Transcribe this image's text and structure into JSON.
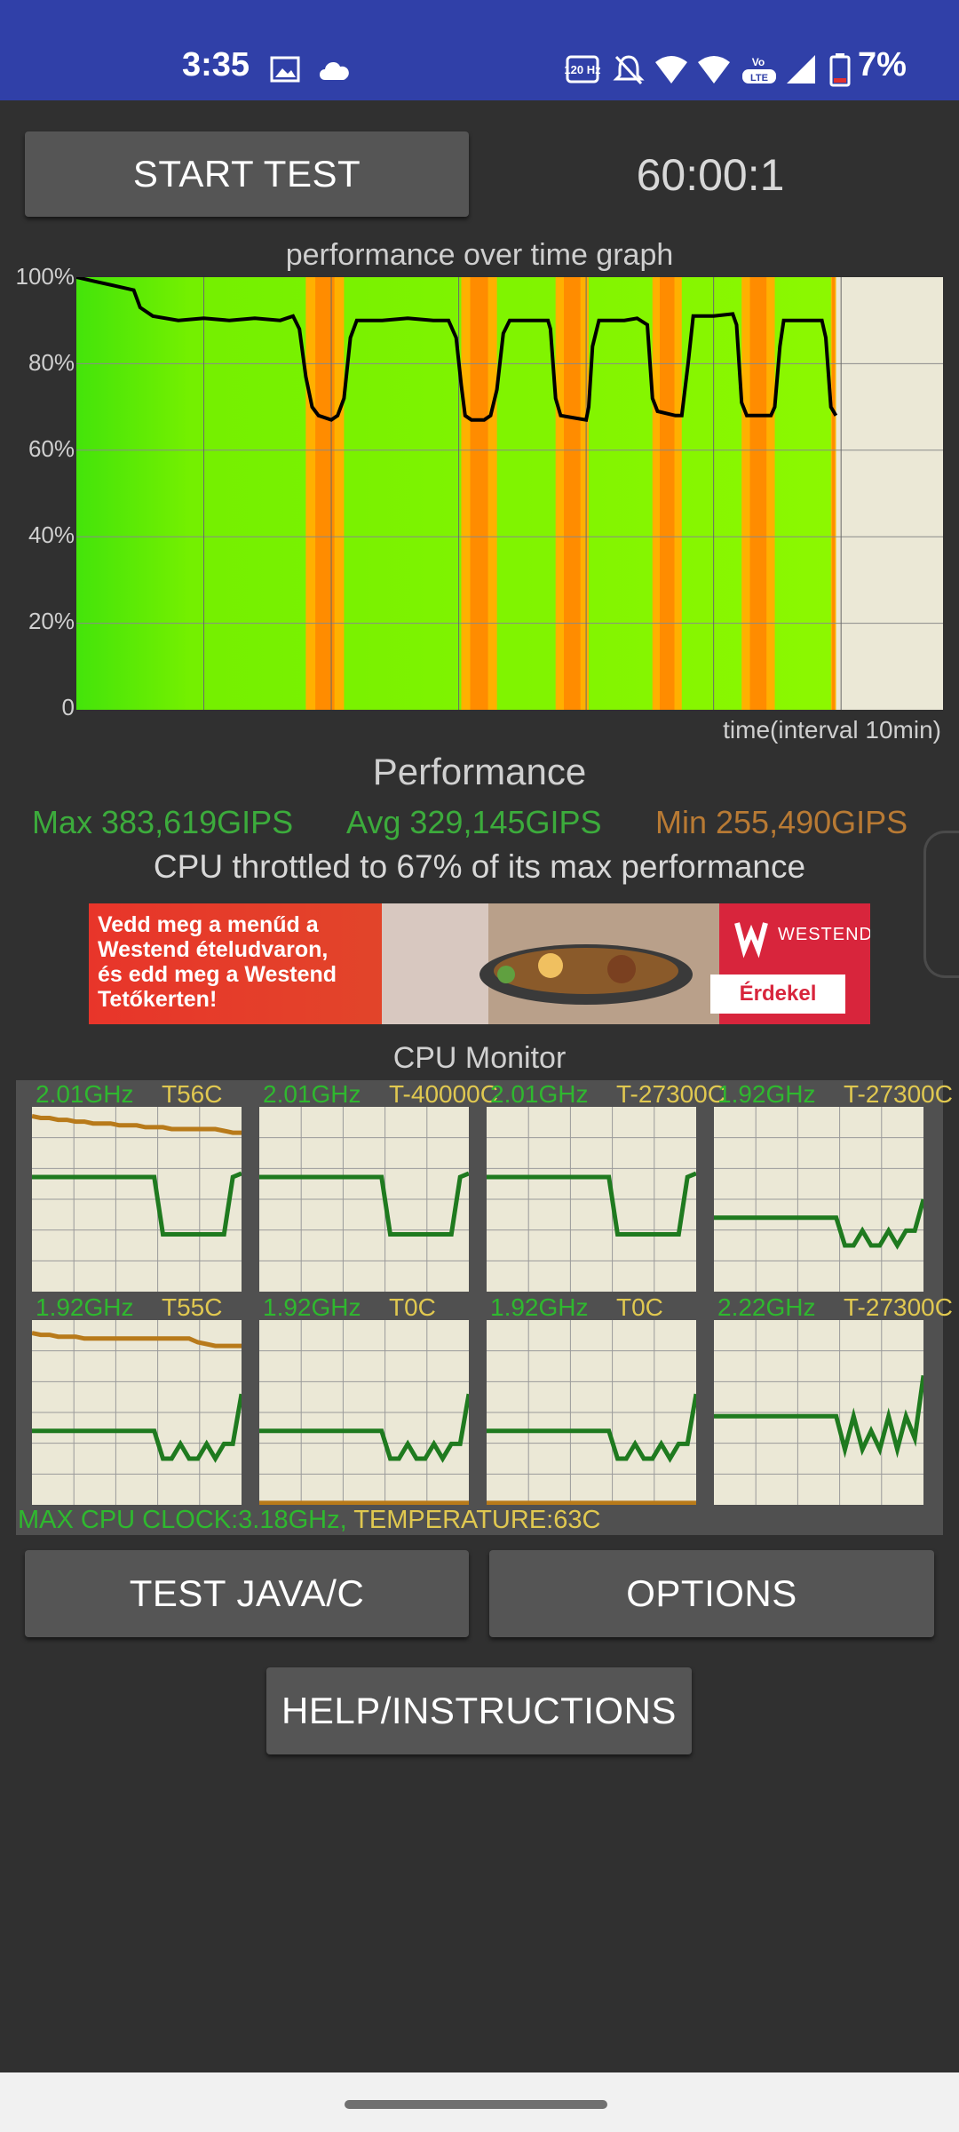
{
  "status_bar": {
    "time": "3:35",
    "battery": "7%",
    "icons": [
      "image-icon",
      "cloud-icon",
      "refresh-rate-icon",
      "bell-off-icon",
      "wifi-icon",
      "wifi-icon",
      "volte-icon",
      "signal-icon",
      "battery-icon"
    ],
    "refresh_rate_label": "120 Hz",
    "volte_label": "Vo LTE"
  },
  "toolbar": {
    "start_label": "START TEST",
    "timer": "60:00:1"
  },
  "graph": {
    "title": "performance over time graph",
    "x_label": "time(interval 10min)",
    "y_ticks": [
      "100%",
      "80%",
      "60%",
      "40%",
      "20%",
      "0"
    ]
  },
  "chart_data": {
    "type": "line",
    "title": "performance over time graph",
    "xlabel": "time(interval 10min)",
    "ylabel": "",
    "ylim": [
      0,
      100
    ],
    "xlim_minutes": [
      0,
      68
    ],
    "grid": true,
    "series": [
      {
        "points_minutes_percent": [
          [
            0,
            100
          ],
          [
            1.5,
            99
          ],
          [
            3,
            98
          ],
          [
            4.5,
            97
          ],
          [
            5,
            93
          ],
          [
            6,
            91
          ],
          [
            8,
            90
          ],
          [
            10,
            90.5
          ],
          [
            12,
            90
          ],
          [
            14,
            90.5
          ],
          [
            16,
            90
          ],
          [
            17,
            91
          ],
          [
            17.5,
            88
          ],
          [
            18,
            77
          ],
          [
            18.5,
            70
          ],
          [
            19,
            68
          ],
          [
            20,
            67
          ],
          [
            20.5,
            68
          ],
          [
            21,
            72
          ],
          [
            21.5,
            86
          ],
          [
            22,
            90
          ],
          [
            24,
            90
          ],
          [
            26,
            90.5
          ],
          [
            28,
            90
          ],
          [
            29.2,
            90
          ],
          [
            29.8,
            86
          ],
          [
            30.2,
            75
          ],
          [
            30.5,
            68
          ],
          [
            31,
            67
          ],
          [
            32,
            67
          ],
          [
            32.5,
            68
          ],
          [
            33,
            74
          ],
          [
            33.5,
            87
          ],
          [
            34,
            90
          ],
          [
            36,
            90
          ],
          [
            37,
            90
          ],
          [
            37.2,
            88
          ],
          [
            37.6,
            72
          ],
          [
            38,
            68
          ],
          [
            40,
            67
          ],
          [
            40.2,
            70
          ],
          [
            40.5,
            84
          ],
          [
            41,
            90
          ],
          [
            43,
            90
          ],
          [
            44,
            90.5
          ],
          [
            44.8,
            89
          ],
          [
            45.2,
            72
          ],
          [
            45.6,
            69
          ],
          [
            47,
            68
          ],
          [
            47.5,
            68
          ],
          [
            48,
            80
          ],
          [
            48.4,
            91
          ],
          [
            50,
            91
          ],
          [
            51.5,
            91.5
          ],
          [
            51.8,
            89
          ],
          [
            52.2,
            71
          ],
          [
            52.6,
            68
          ],
          [
            54.5,
            68
          ],
          [
            54.8,
            70
          ],
          [
            55.2,
            84
          ],
          [
            55.5,
            90
          ],
          [
            57,
            90
          ],
          [
            58.5,
            90
          ],
          [
            58.8,
            86
          ],
          [
            59.2,
            70
          ],
          [
            59.6,
            68
          ]
        ]
      }
    ]
  },
  "performance": {
    "title": "Performance",
    "max": "Max 383,619GIPS",
    "avg": "Avg 329,145GIPS",
    "min": "Min 255,490GIPS",
    "throttle": "CPU throttled to 67% of its max performance",
    "max_color": "#3cab3c",
    "avg_color": "#3cab3c",
    "min_color": "#b87a34"
  },
  "ad": {
    "text_line1": "Vedd meg a menűd a",
    "text_line2": "Westend ételudvaron,",
    "text_line3": "és edd meg a Westend",
    "text_line4": "Tetőkerten!",
    "brand": "WESTEND",
    "cta": "Érdekel"
  },
  "cpu_monitor": {
    "title": "CPU Monitor",
    "cores": [
      {
        "freq": "2.01GHz",
        "temp": "T56C",
        "freq_trace": [
          62,
          62,
          62,
          62,
          62,
          62,
          62,
          62,
          62,
          62,
          62,
          62,
          62,
          62,
          62,
          31,
          31,
          31,
          31,
          31,
          31,
          31,
          31,
          62,
          64
        ],
        "temp_trace": [
          95,
          94,
          94,
          93,
          93,
          92,
          92,
          91,
          91,
          91,
          90,
          90,
          90,
          89,
          89,
          89,
          88,
          88,
          88,
          88,
          88,
          88,
          87,
          86,
          86
        ]
      },
      {
        "freq": "2.01GHz",
        "temp": "T-40000C",
        "freq_trace": [
          62,
          62,
          62,
          62,
          62,
          62,
          62,
          62,
          62,
          62,
          62,
          62,
          62,
          62,
          62,
          31,
          31,
          31,
          31,
          31,
          31,
          31,
          31,
          62,
          64
        ]
      },
      {
        "freq": "2.01GHz",
        "temp": "T-27300C",
        "freq_trace": [
          62,
          62,
          62,
          62,
          62,
          62,
          62,
          62,
          62,
          62,
          62,
          62,
          62,
          62,
          62,
          31,
          31,
          31,
          31,
          31,
          31,
          31,
          31,
          62,
          64
        ]
      },
      {
        "freq": "1.92GHz",
        "temp": "T-27300C",
        "freq_trace": [
          40,
          40,
          40,
          40,
          40,
          40,
          40,
          40,
          40,
          40,
          40,
          40,
          40,
          40,
          40,
          25,
          25,
          33,
          25,
          25,
          33,
          25,
          33,
          33,
          50
        ]
      },
      {
        "freq": "1.92GHz",
        "temp": "T55C",
        "freq_trace": [
          40,
          40,
          40,
          40,
          40,
          40,
          40,
          40,
          40,
          40,
          40,
          40,
          40,
          40,
          40,
          25,
          25,
          33,
          25,
          25,
          33,
          25,
          33,
          33,
          60
        ],
        "temp_trace": [
          93,
          92,
          92,
          91,
          91,
          91,
          90,
          90,
          90,
          90,
          90,
          90,
          90,
          90,
          90,
          90,
          90,
          90,
          90,
          88,
          87,
          86,
          86,
          86,
          86
        ]
      },
      {
        "freq": "1.92GHz",
        "temp": "T0C",
        "freq_trace": [
          40,
          40,
          40,
          40,
          40,
          40,
          40,
          40,
          40,
          40,
          40,
          40,
          40,
          40,
          40,
          25,
          25,
          33,
          25,
          25,
          33,
          25,
          33,
          33,
          60
        ],
        "temp_trace": [
          1,
          1,
          1,
          1,
          1,
          1,
          1,
          1,
          1,
          1,
          1,
          1,
          1,
          1,
          1,
          1,
          1,
          1,
          1,
          1,
          1,
          1,
          1,
          1,
          1
        ]
      },
      {
        "freq": "1.92GHz",
        "temp": "T0C",
        "freq_trace": [
          40,
          40,
          40,
          40,
          40,
          40,
          40,
          40,
          40,
          40,
          40,
          40,
          40,
          40,
          40,
          25,
          25,
          33,
          25,
          25,
          33,
          25,
          33,
          33,
          60
        ],
        "temp_trace": [
          1,
          1,
          1,
          1,
          1,
          1,
          1,
          1,
          1,
          1,
          1,
          1,
          1,
          1,
          1,
          1,
          1,
          1,
          1,
          1,
          1,
          1,
          1,
          1,
          1
        ]
      },
      {
        "freq": "2.22GHz",
        "temp": "T-27300C",
        "freq_trace": [
          48,
          48,
          48,
          48,
          48,
          48,
          48,
          48,
          48,
          48,
          48,
          48,
          48,
          48,
          48,
          30,
          48,
          30,
          40,
          30,
          48,
          30,
          48,
          36,
          70
        ]
      }
    ],
    "footer_max_clock": "MAX CPU CLOCK:3.18GHz,",
    "footer_temp": " TEMPERATURE:63C",
    "freq_line_color": "#1f7a1f",
    "temp_line_color": "#b87a1a"
  },
  "buttons": {
    "test_java_c": "TEST JAVA/C",
    "options": "OPTIONS",
    "help": "HELP/INSTRUCTIONS"
  }
}
